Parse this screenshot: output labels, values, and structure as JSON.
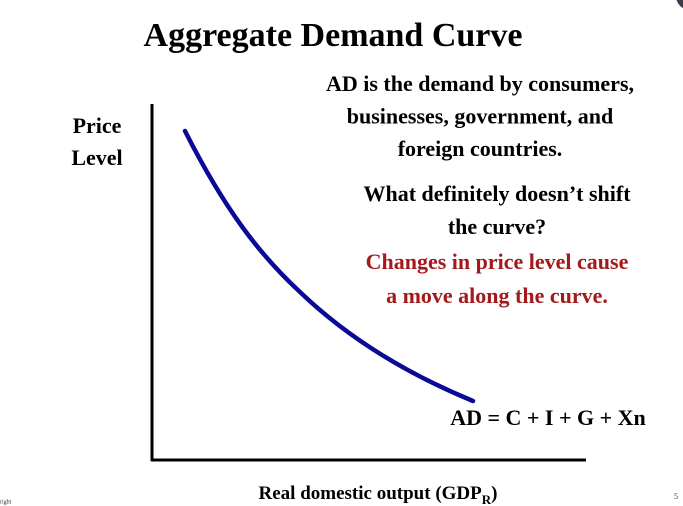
{
  "slide": {
    "title": "Aggregate Demand Curve",
    "description": [
      "AD is the demand by consumers,",
      "businesses, government, and",
      "foreign countries."
    ],
    "question": [
      "What definitely doesn’t shift",
      "the curve?"
    ],
    "answer": [
      "Changes in price level cause",
      "a move along the curve."
    ],
    "y_axis_label": [
      "Price",
      "Level"
    ],
    "x_axis_label": {
      "text": "Real domestic output (GDP",
      "subscript": "R",
      "suffix": ")"
    },
    "curve_label": "AD = C + I + G + Xn",
    "page_number": "5",
    "footer": "right"
  }
}
